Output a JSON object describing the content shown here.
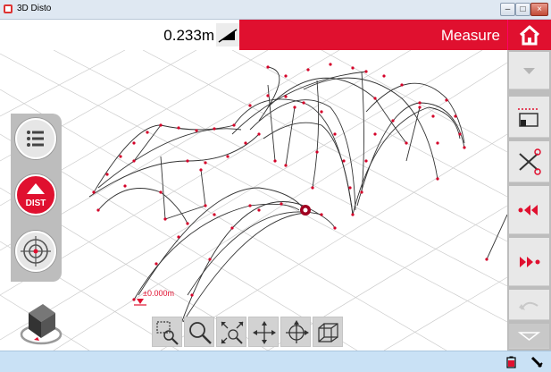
{
  "window": {
    "title": "3D Disto"
  },
  "toolbar": {
    "distance_value": "0.233m",
    "mode_label": "Measure"
  },
  "left_tools": {
    "dist_label": "DIST"
  },
  "viewport": {
    "height_marker": "±0.000m"
  },
  "icons": {
    "home": "home-icon",
    "list": "list-icon",
    "target": "target-icon",
    "incline": "incline-icon"
  },
  "colors": {
    "accent": "#e0102f",
    "panel": "#bdbdbd",
    "status_bar": "#c9e1f5"
  }
}
